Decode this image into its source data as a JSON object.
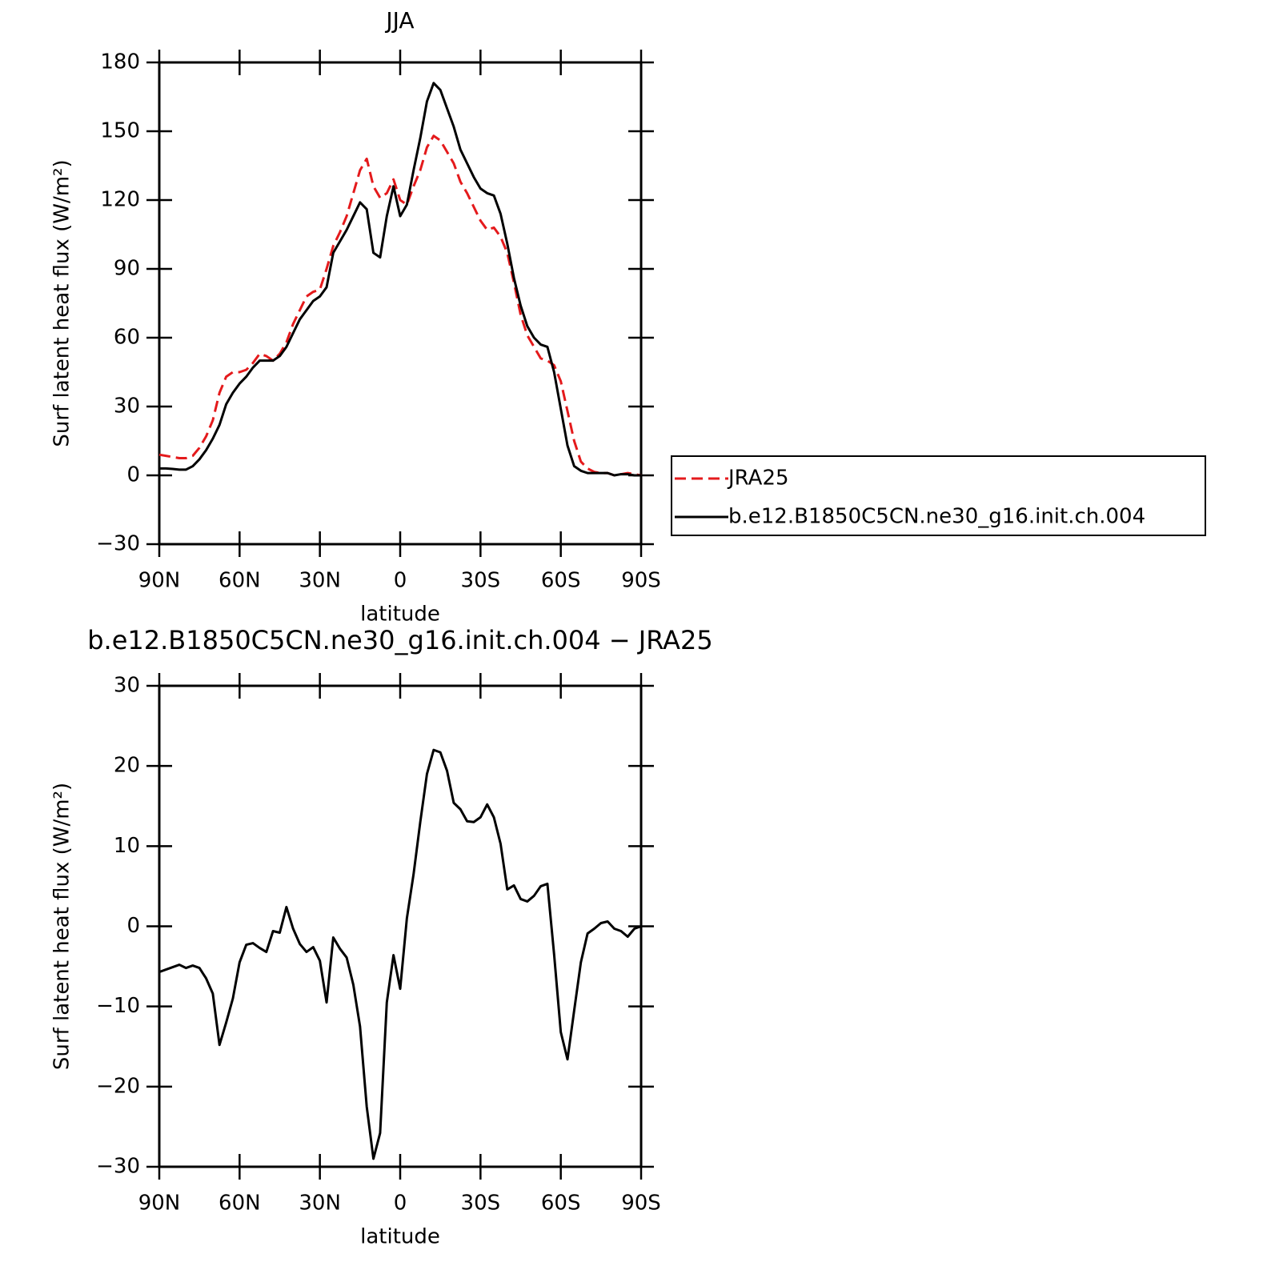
{
  "chart_data": [
    {
      "type": "line",
      "title": "JJA",
      "xlabel": "latitude",
      "ylabel": "Surf latent heat flux (W/m²)",
      "x": [
        90,
        87.5,
        85,
        82.5,
        80,
        77.5,
        75,
        72.5,
        70,
        67.5,
        65,
        62.5,
        60,
        57.5,
        55,
        52.5,
        50,
        47.5,
        45,
        42.5,
        40,
        37.5,
        35,
        32.5,
        30,
        27.5,
        25,
        22.5,
        20,
        17.5,
        15,
        12.5,
        10,
        7.5,
        5,
        2.5,
        0,
        -2.5,
        -5,
        -7.5,
        -10,
        -12.5,
        -15,
        -17.5,
        -20,
        -22.5,
        -25,
        -27.5,
        -30,
        -32.5,
        -35,
        -37.5,
        -40,
        -42.5,
        -45,
        -47.5,
        -50,
        -52.5,
        -55,
        -57.5,
        -60,
        -62.5,
        -65,
        -67.5,
        -70,
        -72.5,
        -75,
        -77.5,
        -80,
        -82.5,
        -85,
        -87.5,
        -90
      ],
      "series": [
        {
          "name": "JRA25",
          "color": "#e41a1c",
          "dash": true,
          "values": [
            9,
            8.5,
            8,
            7.5,
            7.5,
            8.5,
            12,
            17,
            24,
            36,
            43,
            45,
            45,
            46,
            49,
            53,
            52,
            50,
            53,
            58,
            66,
            72,
            78,
            80,
            81,
            90,
            100,
            106,
            113,
            123,
            133,
            138,
            126,
            121,
            123,
            129,
            120,
            118,
            126,
            133,
            143,
            148,
            146,
            141,
            136,
            128,
            123,
            117,
            111,
            107,
            108,
            104,
            97,
            84,
            70,
            61,
            56,
            51,
            50,
            48,
            41,
            28,
            15,
            6,
            3,
            1.5,
            1,
            1,
            0,
            0.5,
            1,
            0.5,
            0
          ]
        },
        {
          "name": "b.e12.B1850C5CN.ne30_g16.init.ch.004",
          "color": "#000000",
          "dash": false,
          "values": [
            3,
            3,
            2.8,
            2.5,
            2.5,
            4,
            7,
            11,
            16,
            22,
            31,
            36,
            40,
            43,
            47,
            50,
            50,
            50,
            52,
            56,
            62,
            68,
            72,
            76,
            78,
            82,
            97,
            102,
            107,
            113,
            119,
            116,
            97,
            95,
            113,
            126,
            113,
            118,
            133,
            147,
            163,
            171,
            168,
            160,
            152,
            142,
            136,
            130,
            125,
            123,
            122,
            114,
            101,
            86,
            74,
            65,
            60,
            57,
            56,
            45,
            29,
            13,
            4,
            2,
            1,
            1,
            1,
            1,
            0,
            0.5,
            0.5,
            0,
            0
          ]
        }
      ],
      "xlim": [
        90,
        -90
      ],
      "xticks": [
        {
          "value": 90,
          "label": "90N"
        },
        {
          "value": 60,
          "label": "60N"
        },
        {
          "value": 30,
          "label": "30N"
        },
        0,
        {
          "value": -30,
          "label": "30S"
        },
        {
          "value": -60,
          "label": "60S"
        },
        {
          "value": -90,
          "label": "90S"
        }
      ],
      "ylim": [
        -30,
        180
      ],
      "yticks": [
        {
          "value": -30,
          "label": "−30"
        },
        0,
        30,
        60,
        90,
        120,
        150,
        180
      ],
      "legend": "right"
    },
    {
      "type": "line",
      "title": "b.e12.B1850C5CN.ne30_g16.init.ch.004 − JRA25",
      "xlabel": "latitude",
      "ylabel": "Surf latent heat flux (W/m²)",
      "x": [
        90,
        87.5,
        85,
        82.5,
        80,
        77.5,
        75,
        72.5,
        70,
        67.5,
        65,
        62.5,
        60,
        57.5,
        55,
        52.5,
        50,
        47.5,
        45,
        42.5,
        40,
        37.5,
        35,
        32.5,
        30,
        27.5,
        25,
        22.5,
        20,
        17.5,
        15,
        12.5,
        10,
        7.5,
        5,
        2.5,
        0,
        -2.5,
        -5,
        -7.5,
        -10,
        -12.5,
        -15,
        -17.5,
        -20,
        -22.5,
        -25,
        -27.5,
        -30,
        -32.5,
        -35,
        -37.5,
        -40,
        -42.5,
        -45,
        -47.5,
        -50,
        -52.5,
        -55,
        -57.5,
        -60,
        -62.5,
        -65,
        -67.5,
        -70,
        -72.5,
        -75,
        -77.5,
        -80,
        -82.5,
        -85,
        -87.5,
        -90
      ],
      "values": [
        -5.7,
        -5.4,
        -5.1,
        -4.8,
        -5.2,
        -4.9,
        -5.2,
        -6.5,
        -8.4,
        -14.8,
        -12,
        -9,
        -4.5,
        -2.3,
        -2.1,
        -2.7,
        -3.2,
        -0.6,
        -0.8,
        2.4,
        -0.3,
        -2.2,
        -3.2,
        -2.6,
        -4.3,
        -9.5,
        -1.4,
        -2.8,
        -3.9,
        -7.3,
        -12.5,
        -22.5,
        -29,
        -25.8,
        -9.5,
        -3.6,
        -7.8,
        1,
        6.5,
        13,
        19,
        22,
        21.7,
        19.4,
        15.4,
        14.6,
        13.1,
        13,
        13.6,
        15.2,
        13.6,
        10.3,
        4.6,
        5.1,
        3.4,
        3.1,
        3.8,
        5,
        5.3,
        -3.5,
        -13.2,
        -16.6,
        -10.5,
        -4.5,
        -0.9,
        -0.3,
        0.4,
        0.6,
        -0.3,
        -0.6,
        -1.3,
        -0.3,
        0
      ],
      "color": "#000000",
      "xlim": [
        90,
        -90
      ],
      "xticks": [
        {
          "value": 90,
          "label": "90N"
        },
        {
          "value": 60,
          "label": "60N"
        },
        {
          "value": 30,
          "label": "30N"
        },
        0,
        {
          "value": -30,
          "label": "30S"
        },
        {
          "value": -60,
          "label": "60S"
        },
        {
          "value": -90,
          "label": "90S"
        }
      ],
      "ylim": [
        -30,
        30
      ],
      "yticks": [
        {
          "value": -30,
          "label": "−30"
        },
        {
          "value": -20,
          "label": "−20"
        },
        {
          "value": -10,
          "label": "−10"
        },
        0,
        10,
        20,
        30
      ]
    }
  ]
}
